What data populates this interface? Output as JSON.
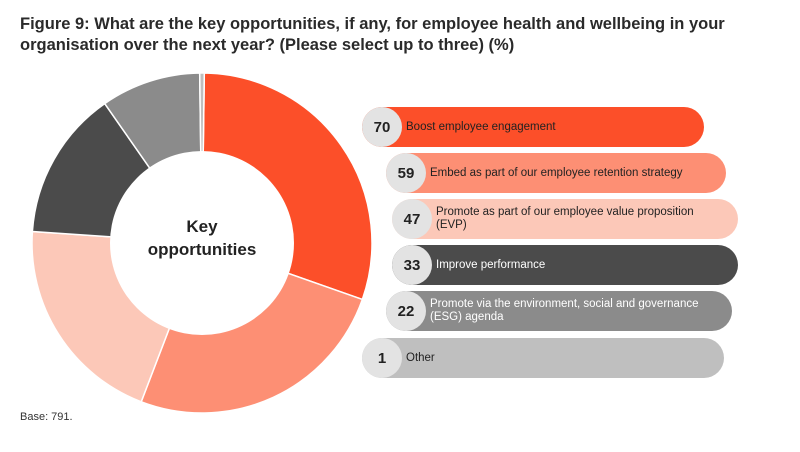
{
  "title": "Figure 9: What are the key opportunities, if any, for employee health and wellbeing in your organisation over the next year? (Please select up to three) (%)",
  "base_note": "Base: 791.",
  "center_label": [
    "Key",
    "opportunities"
  ],
  "colors": [
    "#fc4f29",
    "#fd8f74",
    "#fcc8b8",
    "#4b4b4b",
    "#8b8b8b",
    "#bfbfbf"
  ],
  "text_colors": [
    "#222222",
    "#222222",
    "#222222",
    "#ffffff",
    "#ffffff",
    "#222222"
  ],
  "chart_data": {
    "type": "pie",
    "title": "Figure 9: What are the key opportunities, if any, for employee health and wellbeing in your organisation over the next year? (Please select up to three) (%)",
    "categories": [
      "Boost employee engagement",
      "Embed as part of our employee retention strategy",
      "Promote as part of our employee value proposition (EVP)",
      "Improve performance",
      "Promote via the environment, social and governance (ESG) agenda",
      "Other"
    ],
    "values": [
      70,
      59,
      47,
      33,
      22,
      1
    ]
  }
}
